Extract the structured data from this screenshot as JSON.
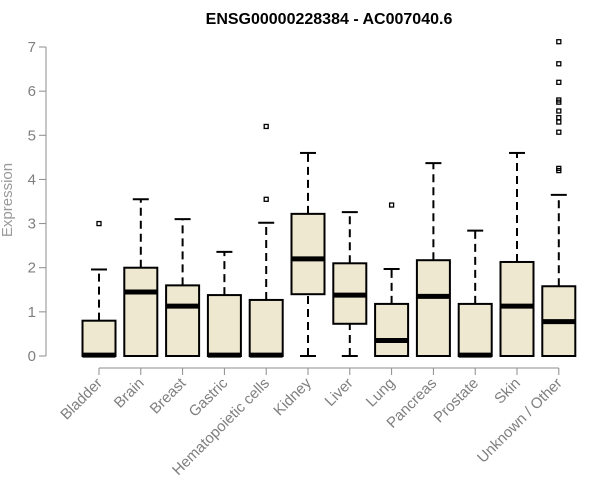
{
  "chart_data": {
    "type": "boxplot",
    "title": "ENSG00000228384 - AC007040.6",
    "xlabel": "",
    "ylabel": "Expression",
    "ylim": [
      0,
      7
    ],
    "yticks": [
      0,
      1,
      2,
      3,
      4,
      5,
      6,
      7
    ],
    "box_color": "#efe8d0",
    "categories": [
      "Bladder",
      "Brain",
      "Breast",
      "Gastric",
      "Hematopoietic cells",
      "Kidney",
      "Liver",
      "Lung",
      "Pancreas",
      "Prostate",
      "Skin",
      "Unknown / Other"
    ],
    "boxes": [
      {
        "whisker_low": 0,
        "q1": 0,
        "median": 0.02,
        "q3": 0.8,
        "whisker_high": 1.96,
        "outliers": [
          3.0
        ]
      },
      {
        "whisker_low": 0,
        "q1": 0,
        "median": 1.45,
        "q3": 2.0,
        "whisker_high": 3.55,
        "outliers": []
      },
      {
        "whisker_low": 0,
        "q1": 0,
        "median": 1.13,
        "q3": 1.6,
        "whisker_high": 3.1,
        "outliers": []
      },
      {
        "whisker_low": 0,
        "q1": 0,
        "median": 0.02,
        "q3": 1.38,
        "whisker_high": 2.36,
        "outliers": []
      },
      {
        "whisker_low": 0,
        "q1": 0,
        "median": 0.02,
        "q3": 1.27,
        "whisker_high": 3.02,
        "outliers": [
          3.55,
          5.2
        ]
      },
      {
        "whisker_low": 0,
        "q1": 1.4,
        "median": 2.2,
        "q3": 3.22,
        "whisker_high": 4.6,
        "outliers": []
      },
      {
        "whisker_low": 0,
        "q1": 0.73,
        "median": 1.38,
        "q3": 2.1,
        "whisker_high": 3.26,
        "outliers": []
      },
      {
        "whisker_low": 0,
        "q1": 0,
        "median": 0.35,
        "q3": 1.18,
        "whisker_high": 1.97,
        "outliers": [
          3.42
        ]
      },
      {
        "whisker_low": 0,
        "q1": 0,
        "median": 1.35,
        "q3": 2.17,
        "whisker_high": 4.37,
        "outliers": []
      },
      {
        "whisker_low": 0,
        "q1": 0,
        "median": 0.02,
        "q3": 1.18,
        "whisker_high": 2.84,
        "outliers": []
      },
      {
        "whisker_low": 0,
        "q1": 0,
        "median": 1.13,
        "q3": 2.13,
        "whisker_high": 4.6,
        "outliers": []
      },
      {
        "whisker_low": 0,
        "q1": 0,
        "median": 0.78,
        "q3": 1.58,
        "whisker_high": 3.65,
        "outliers": [
          4.2,
          4.25,
          5.07,
          5.3,
          5.4,
          5.55,
          5.75,
          5.8,
          6.2,
          6.62,
          7.12
        ]
      }
    ]
  }
}
